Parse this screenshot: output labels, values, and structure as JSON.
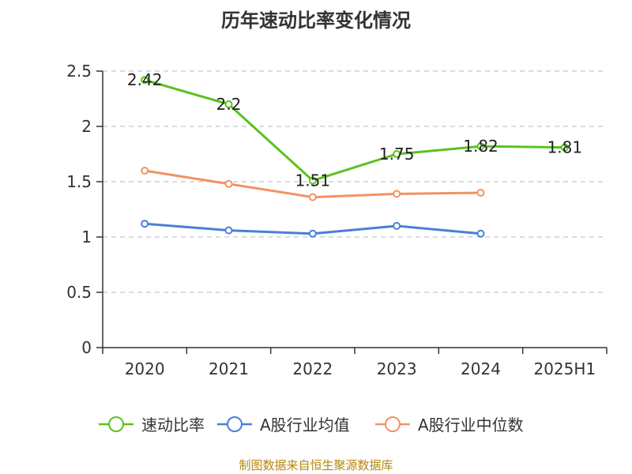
{
  "chart_data": {
    "type": "line",
    "title": "历年速动比率变化情况",
    "categories": [
      "2020",
      "2021",
      "2022",
      "2023",
      "2024",
      "2025H1"
    ],
    "ylim": [
      0,
      2.5
    ],
    "yticks": [
      "0",
      "0.5",
      "1",
      "1.5",
      "2",
      "2.5"
    ],
    "grid": true,
    "legend_position": "bottom",
    "series": [
      {
        "name": "速动比率",
        "color": "#5ac21e",
        "values": [
          2.42,
          2.2,
          1.51,
          1.75,
          1.82,
          1.81
        ],
        "labels": [
          "2.42",
          "2.2",
          "1.51",
          "1.75",
          "1.82",
          "1.81"
        ]
      },
      {
        "name": "A股行业均值",
        "color": "#4a7fd8",
        "values": [
          1.12,
          1.06,
          1.03,
          1.1,
          1.03,
          null
        ]
      },
      {
        "name": "A股行业中位数",
        "color": "#f39261",
        "values": [
          1.6,
          1.48,
          1.36,
          1.39,
          1.4,
          null
        ]
      }
    ]
  },
  "source_note": "制图数据来自恒生聚源数据库"
}
